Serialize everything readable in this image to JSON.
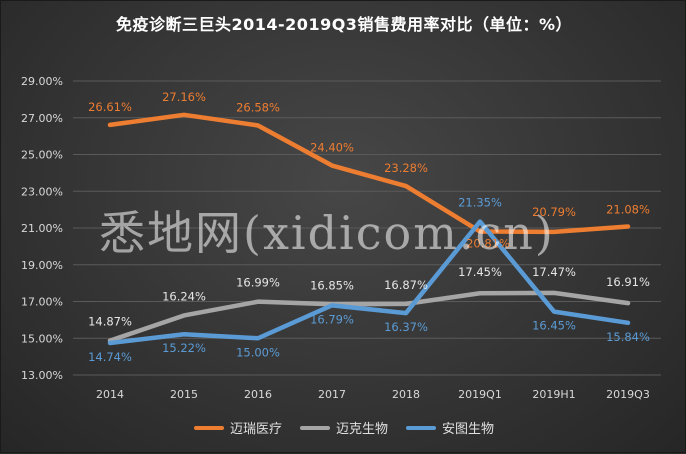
{
  "title": "免疫诊断三巨头2014-2019Q3销售费用率对比（单位：%）",
  "watermark": "悉地网(xidicom.cn)",
  "colors": {
    "迈瑞医疗": "#ed7d31",
    "迈克生物": "#a5a5a5",
    "安图生物": "#5b9bd5"
  },
  "chart_data": {
    "type": "line",
    "title": "免疫诊断三巨头2014-2019Q3销售费用率对比（单位：%）",
    "categories": [
      "2014",
      "2015",
      "2016",
      "2017",
      "2018",
      "2019Q1",
      "2019H1",
      "2019Q3"
    ],
    "ylim": [
      13.0,
      29.0
    ],
    "yticks": [
      "13.00%",
      "15.00%",
      "17.00%",
      "19.00%",
      "21.00%",
      "23.00%",
      "25.00%",
      "27.00%",
      "29.00%"
    ],
    "grid": true,
    "legend_position": "bottom",
    "series": [
      {
        "name": "迈瑞医疗",
        "values": [
          26.61,
          27.16,
          26.58,
          24.4,
          23.28,
          20.81,
          20.79,
          21.08
        ],
        "labels": [
          "26.61%",
          "27.16%",
          "26.58%",
          "24.40%",
          "23.28%",
          "20.81%",
          "20.79%",
          "21.08%"
        ]
      },
      {
        "name": "迈克生物",
        "values": [
          14.87,
          16.24,
          16.99,
          16.85,
          16.87,
          17.45,
          17.47,
          16.91
        ],
        "labels": [
          "14.87%",
          "16.24%",
          "16.99%",
          "16.85%",
          "16.87%",
          "17.45%",
          "17.47%",
          "16.91%"
        ]
      },
      {
        "name": "安图生物",
        "values": [
          14.74,
          15.22,
          15.0,
          16.79,
          16.37,
          21.35,
          16.45,
          15.84
        ],
        "labels": [
          "14.74%",
          "15.22%",
          "15.00%",
          "16.79%",
          "16.37%",
          "21.35%",
          "16.45%",
          "15.84%"
        ]
      }
    ]
  }
}
